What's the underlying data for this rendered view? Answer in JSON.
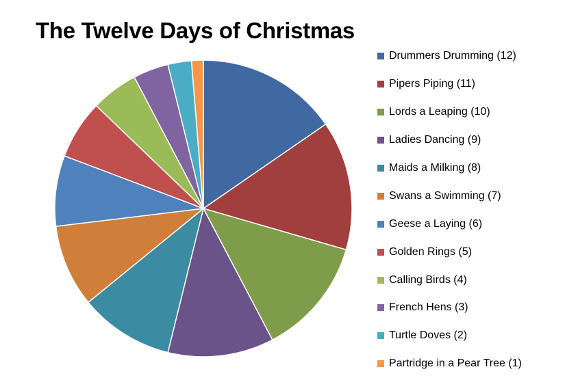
{
  "chart_data": {
    "type": "pie",
    "title": "The Twelve Days of Christmas",
    "legend_position": "right",
    "start_angle_deg": 0,
    "direction": "clockwise",
    "slices": [
      {
        "label": "Drummers Drumming (12)",
        "value": 12,
        "color": "#4169A1"
      },
      {
        "label": "Pipers Piping (11)",
        "value": 11,
        "color": "#A03F3D"
      },
      {
        "label": "Lords a Leaping (10)",
        "value": 10,
        "color": "#7F9C4A"
      },
      {
        "label": "Ladies Dancing (9)",
        "value": 9,
        "color": "#6A5389"
      },
      {
        "label": "Maids a Milking (8)",
        "value": 8,
        "color": "#3B8CA2"
      },
      {
        "label": "Swans a Swimming (7)",
        "value": 7,
        "color": "#D07F3A"
      },
      {
        "label": "Geese a Laying (6)",
        "value": 6,
        "color": "#4F81BD"
      },
      {
        "label": "Golden Rings (5)",
        "value": 5,
        "color": "#C0504D"
      },
      {
        "label": "Calling Birds (4)",
        "value": 4,
        "color": "#9BBB59"
      },
      {
        "label": "French Hens (3)",
        "value": 3,
        "color": "#8064A2"
      },
      {
        "label": "Turtle Doves (2)",
        "value": 2,
        "color": "#4BACC6"
      },
      {
        "label": "Partridge in a Pear Tree (1)",
        "value": 1,
        "color": "#F79646"
      }
    ]
  }
}
